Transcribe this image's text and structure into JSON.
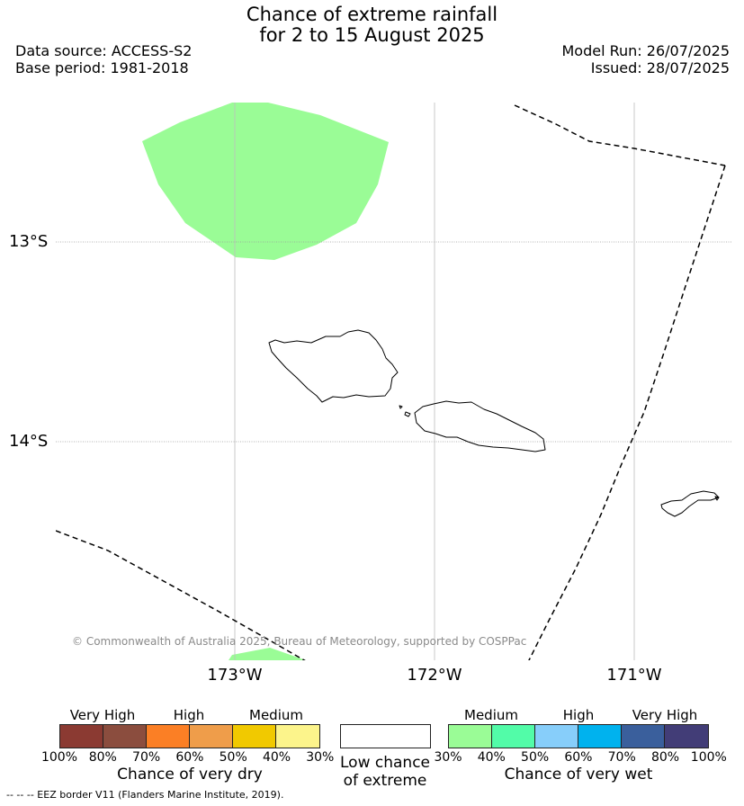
{
  "title": {
    "line1": "Chance of extreme rainfall",
    "line2": "for 2 to 15 August 2025"
  },
  "meta": {
    "data_source": "Data source: ACCESS-S2",
    "base_period": "Base period: 1981-2018",
    "model_run": "Model Run: 26/07/2025",
    "issued": "Issued: 28/07/2025"
  },
  "map": {
    "lat_labels": [
      "13°S",
      "14°S"
    ],
    "lon_labels": [
      "173°W",
      "172°W",
      "171°W"
    ],
    "credit": "© Commonwealth of Australia 2025, Bureau of Meteorology, supported by COSPPac",
    "wet_fill_color": "#9afc96"
  },
  "legend": {
    "dry": {
      "headers": [
        "Very High",
        "High",
        "Medium"
      ],
      "colors": [
        "#8b3a32",
        "#8b4d3e",
        "#fb7f25",
        "#ef9d4a",
        "#f1c900",
        "#fcf48b"
      ],
      "ticks": [
        "100%",
        "80%",
        "70%",
        "60%",
        "50%",
        "40%",
        "30%"
      ],
      "caption": "Chance of very dry"
    },
    "low": {
      "color": "#ffffff",
      "caption_line1": "Low chance",
      "caption_line2": "of extreme"
    },
    "wet": {
      "headers": [
        "Medium",
        "High",
        "Very High"
      ],
      "colors": [
        "#9afc96",
        "#52fca8",
        "#87cefa",
        "#00b2ee",
        "#3a5f9c",
        "#423d77"
      ],
      "ticks": [
        "30%",
        "40%",
        "50%",
        "60%",
        "70%",
        "80%",
        "100%"
      ],
      "caption": "Chance of very wet"
    }
  },
  "footnote": "--  --  -- EEZ border V11 (Flanders Marine Institute, 2019)."
}
